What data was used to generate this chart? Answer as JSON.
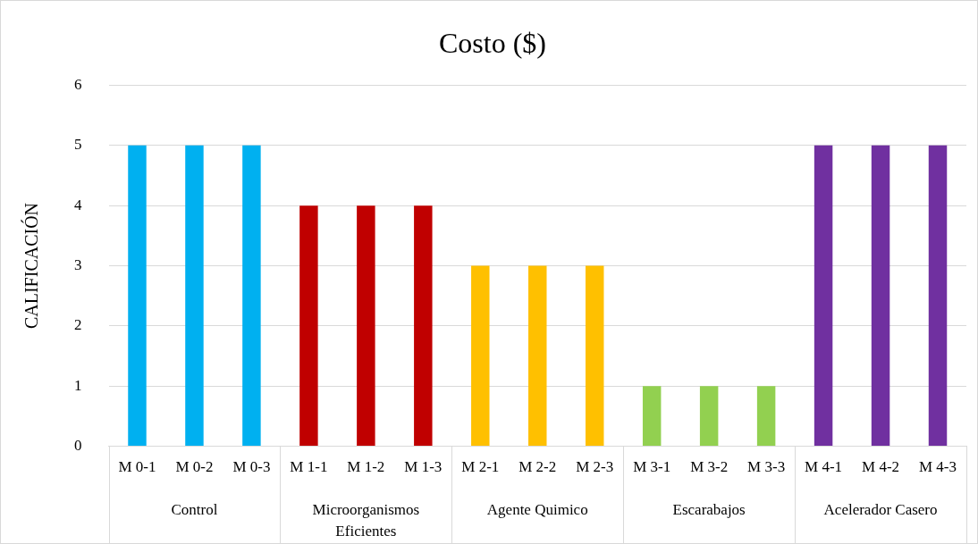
{
  "chart_data": {
    "type": "bar",
    "title": "Costo ($)",
    "ylabel": "CALIFICACIÓN",
    "categories": [
      "M 0-1",
      "M 0-2",
      "M 0-3",
      "M 1-1",
      "M 1-2",
      "M 1-3",
      "M 2-1",
      "M 2-2",
      "M 2-3",
      "M 3-1",
      "M 3-2",
      "M 3-3",
      "M 4-1",
      "M 4-2",
      "M 4-3"
    ],
    "values": [
      5,
      5,
      5,
      4,
      4,
      4,
      3,
      3,
      3,
      1,
      1,
      1,
      5,
      5,
      5
    ],
    "colors": [
      "#00b0f0",
      "#00b0f0",
      "#00b0f0",
      "#c00000",
      "#c00000",
      "#c00000",
      "#ffc000",
      "#ffc000",
      "#ffc000",
      "#92d050",
      "#92d050",
      "#92d050",
      "#7030a0",
      "#7030a0",
      "#7030a0"
    ],
    "ylim": [
      0,
      6
    ],
    "yticks": [
      0,
      1,
      2,
      3,
      4,
      5,
      6
    ],
    "grid": "y",
    "legend": false,
    "annotations": [
      "Control",
      "Microorganismos Eficientes",
      "Agente Quimico",
      "Escarabajos",
      "Acelerador Casero"
    ]
  }
}
